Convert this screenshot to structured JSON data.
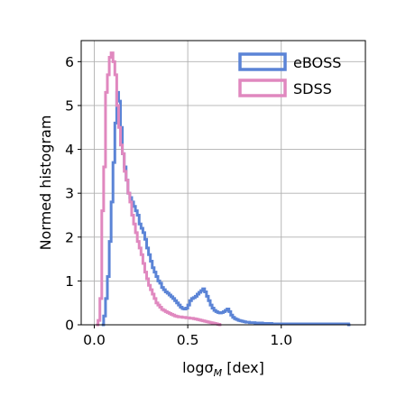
{
  "chart_data": {
    "type": "step-histogram",
    "xlabel_parts": {
      "main": "logσ",
      "sub": "M",
      "unit": " [dex]"
    },
    "ylabel": "Normed histogram",
    "xlim": [
      -0.07,
      1.45
    ],
    "ylim": [
      0,
      6.48
    ],
    "xticks": [
      0.0,
      0.5,
      1.0
    ],
    "xtick_labels": [
      "0.0",
      "0.5",
      "1.0"
    ],
    "yticks": [
      0,
      1,
      2,
      3,
      4,
      5,
      6
    ],
    "ytick_labels": [
      "0",
      "1",
      "2",
      "3",
      "4",
      "5",
      "6"
    ],
    "grid": true,
    "legend_position": "top-right",
    "series": [
      {
        "name": "eBOSS",
        "color": "#5b84d6",
        "bin_width": 0.01,
        "bin_start": 0.04,
        "values": [
          0.0,
          0.2,
          0.6,
          1.1,
          1.9,
          2.8,
          3.7,
          4.6,
          5.3,
          5.1,
          4.5,
          3.9,
          3.6,
          3.3,
          3.0,
          2.9,
          2.8,
          2.7,
          2.6,
          2.5,
          2.3,
          2.2,
          2.1,
          1.95,
          1.75,
          1.6,
          1.45,
          1.3,
          1.2,
          1.1,
          1.0,
          0.95,
          0.85,
          0.8,
          0.75,
          0.72,
          0.68,
          0.64,
          0.6,
          0.55,
          0.5,
          0.45,
          0.4,
          0.37,
          0.36,
          0.38,
          0.45,
          0.55,
          0.6,
          0.62,
          0.65,
          0.7,
          0.74,
          0.78,
          0.82,
          0.75,
          0.65,
          0.55,
          0.45,
          0.38,
          0.33,
          0.3,
          0.28,
          0.27,
          0.28,
          0.3,
          0.33,
          0.36,
          0.3,
          0.22,
          0.17,
          0.14,
          0.12,
          0.1,
          0.09,
          0.08,
          0.07,
          0.06,
          0.06,
          0.05,
          0.05,
          0.05,
          0.04,
          0.04,
          0.04,
          0.04,
          0.03,
          0.03,
          0.03,
          0.03,
          0.03,
          0.02,
          0.02,
          0.02,
          0.02,
          0.02,
          0.02,
          0.02,
          0.02,
          0.02,
          0.02,
          0.02,
          0.02,
          0.02,
          0.02,
          0.02,
          0.02,
          0.02,
          0.02,
          0.02,
          0.02,
          0.02,
          0.02,
          0.02,
          0.02,
          0.02,
          0.02,
          0.02,
          0.02,
          0.02,
          0.02,
          0.02,
          0.02,
          0.02,
          0.02,
          0.02,
          0.02,
          0.02,
          0.02,
          0.02,
          0.02,
          0.02,
          0.0
        ]
      },
      {
        "name": "SDSS",
        "color": "#e088bf",
        "bin_width": 0.01,
        "bin_start": 0.01,
        "values": [
          0.0,
          0.1,
          0.6,
          2.6,
          3.6,
          5.3,
          5.7,
          6.1,
          6.2,
          6.0,
          5.7,
          5.0,
          4.5,
          4.1,
          3.9,
          3.5,
          3.3,
          3.0,
          2.8,
          2.5,
          2.3,
          2.1,
          1.9,
          1.75,
          1.6,
          1.4,
          1.2,
          1.05,
          0.9,
          0.8,
          0.7,
          0.6,
          0.5,
          0.45,
          0.4,
          0.35,
          0.33,
          0.3,
          0.28,
          0.26,
          0.24,
          0.22,
          0.2,
          0.19,
          0.18,
          0.18,
          0.17,
          0.17,
          0.16,
          0.16,
          0.15,
          0.15,
          0.14,
          0.13,
          0.12,
          0.11,
          0.1,
          0.09,
          0.08,
          0.07,
          0.06,
          0.05,
          0.04,
          0.03,
          0.02,
          0.01,
          0.0
        ]
      }
    ]
  }
}
